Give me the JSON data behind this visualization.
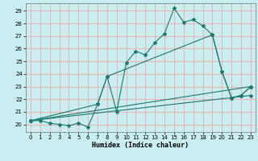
{
  "xlabel": "Humidex (Indice chaleur)",
  "bg_color": "#c8eef0",
  "line_color": "#1a7a6e",
  "grid_color": "#ff9999",
  "xlim": [
    -0.5,
    23.5
  ],
  "ylim": [
    19.4,
    29.6
  ],
  "xticks": [
    0,
    1,
    2,
    3,
    4,
    5,
    6,
    7,
    8,
    9,
    10,
    11,
    12,
    13,
    14,
    15,
    16,
    17,
    18,
    19,
    20,
    21,
    22,
    23
  ],
  "yticks": [
    20,
    21,
    22,
    23,
    24,
    25,
    26,
    27,
    28,
    29
  ],
  "line1": {
    "x": [
      0,
      1,
      2,
      3,
      4,
      5,
      6,
      7,
      8,
      9,
      10,
      11,
      12,
      13,
      14,
      15,
      16,
      17,
      18,
      19,
      20,
      21,
      22,
      23
    ],
    "y": [
      20.3,
      20.3,
      20.1,
      20.0,
      19.9,
      20.1,
      19.8,
      21.6,
      23.8,
      21.0,
      24.9,
      25.8,
      25.5,
      26.5,
      27.2,
      29.2,
      28.1,
      28.3,
      27.8,
      27.1,
      24.2,
      22.1,
      22.3,
      23.0
    ]
  },
  "line2": {
    "x": [
      0,
      7,
      8,
      19,
      20,
      21,
      22,
      23
    ],
    "y": [
      20.3,
      21.6,
      23.8,
      27.1,
      24.2,
      22.1,
      22.3,
      23.0
    ]
  },
  "line3": {
    "x": [
      0,
      23
    ],
    "y": [
      20.3,
      23.0
    ]
  },
  "line4": {
    "x": [
      0,
      23
    ],
    "y": [
      20.3,
      22.3
    ]
  }
}
